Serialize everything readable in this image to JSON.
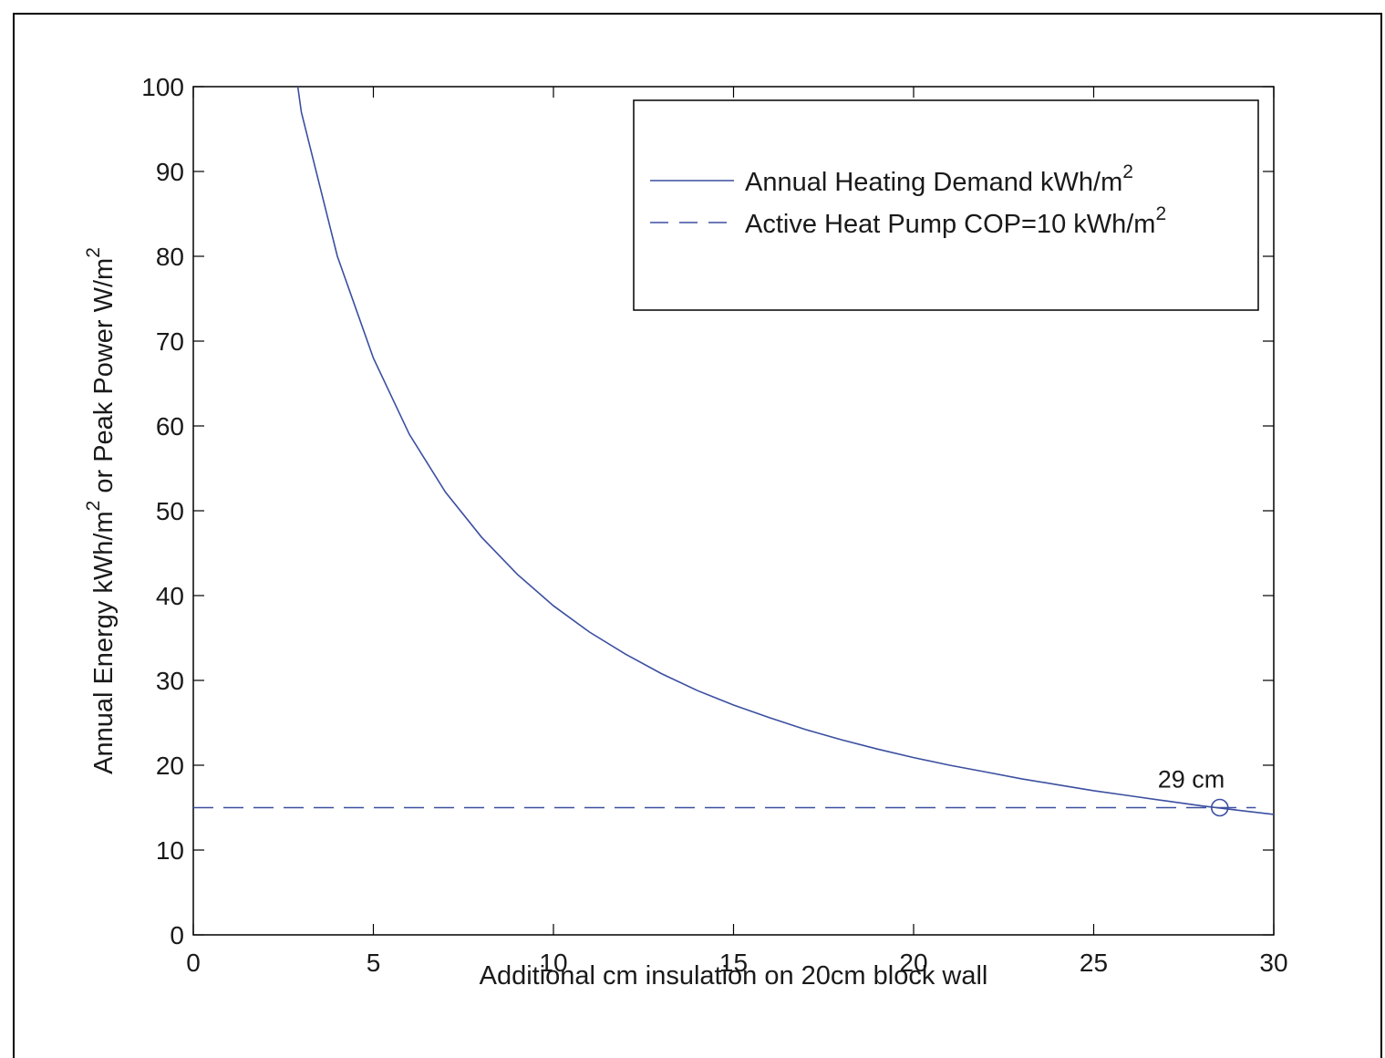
{
  "chart_data": {
    "type": "line",
    "xlabel": "Additional cm insulation on 20cm block wall",
    "ylabel_parts": [
      "Annual Energy kWh/m",
      "2",
      " or Peak Power W/m",
      "2"
    ],
    "xlim": [
      0,
      30
    ],
    "ylim": [
      0,
      100
    ],
    "x_ticks": [
      0,
      5,
      10,
      15,
      20,
      25,
      30
    ],
    "y_ticks": [
      0,
      10,
      20,
      30,
      40,
      50,
      60,
      70,
      80,
      90,
      100
    ],
    "x_tick_labels": [
      "0",
      "5",
      "10",
      "15",
      "20",
      "25",
      "30"
    ],
    "y_tick_labels": [
      "0",
      "10",
      "20",
      "30",
      "40",
      "50",
      "60",
      "70",
      "80",
      "90",
      "100"
    ],
    "grid": false,
    "legend_position": "top-right",
    "series": [
      {
        "name_parts": [
          "Annual Heating Demand kWh/m",
          "2"
        ],
        "style": "solid",
        "color": "#3b4fa0",
        "x": [
          2.9,
          3,
          4,
          5,
          6,
          7,
          8,
          9,
          10,
          11,
          12,
          13,
          14,
          15,
          16,
          17,
          18,
          19,
          20,
          21,
          22,
          23,
          24,
          25,
          26,
          27,
          28,
          29,
          30
        ],
        "y": [
          100,
          97,
          80,
          68,
          59,
          52.2,
          46.9,
          42.5,
          38.8,
          35.7,
          33.1,
          30.8,
          28.8,
          27.1,
          25.6,
          24.2,
          23.0,
          21.9,
          20.9,
          20.0,
          19.2,
          18.4,
          17.7,
          17.0,
          16.4,
          15.8,
          15.2,
          14.7,
          14.2
        ]
      },
      {
        "name_parts": [
          "Active Heat Pump COP=10 kWh/m",
          "2"
        ],
        "style": "dashed",
        "color": "#3b4fa0",
        "x": [
          0,
          29.5
        ],
        "y": [
          15,
          15
        ]
      }
    ],
    "annotations": [
      {
        "text": "29 cm",
        "x": 28.5,
        "y": 15,
        "marker": "circle"
      }
    ]
  }
}
